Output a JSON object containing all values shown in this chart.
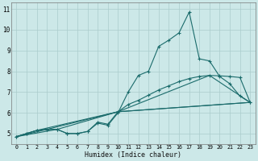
{
  "xlabel": "Humidex (Indice chaleur)",
  "background_color": "#cce8e8",
  "grid_color": "#aacccc",
  "line_color": "#1a6b6b",
  "xlim": [
    -0.5,
    23.5
  ],
  "ylim": [
    4.5,
    11.3
  ],
  "xticks": [
    0,
    1,
    2,
    3,
    4,
    5,
    6,
    7,
    8,
    9,
    10,
    11,
    12,
    13,
    14,
    15,
    16,
    17,
    18,
    19,
    20,
    21,
    22,
    23
  ],
  "yticks": [
    5,
    6,
    7,
    8,
    9,
    10,
    11
  ],
  "series1": [
    [
      0,
      4.85
    ],
    [
      1,
      5.0
    ],
    [
      2,
      5.15
    ],
    [
      3,
      5.2
    ],
    [
      4,
      5.2
    ],
    [
      5,
      5.0
    ],
    [
      6,
      5.0
    ],
    [
      7,
      5.1
    ],
    [
      8,
      5.5
    ],
    [
      9,
      5.4
    ],
    [
      10,
      6.0
    ],
    [
      11,
      7.0
    ],
    [
      12,
      7.8
    ],
    [
      13,
      8.0
    ],
    [
      14,
      9.2
    ],
    [
      15,
      9.5
    ],
    [
      16,
      9.85
    ],
    [
      17,
      10.85
    ],
    [
      18,
      8.6
    ],
    [
      19,
      8.5
    ],
    [
      20,
      7.75
    ],
    [
      21,
      7.4
    ],
    [
      22,
      6.8
    ],
    [
      23,
      6.5
    ]
  ],
  "series2": [
    [
      0,
      4.85
    ],
    [
      1,
      5.0
    ],
    [
      2,
      5.15
    ],
    [
      3,
      5.2
    ],
    [
      4,
      5.2
    ],
    [
      5,
      5.0
    ],
    [
      6,
      5.0
    ],
    [
      7,
      5.1
    ],
    [
      8,
      5.55
    ],
    [
      9,
      5.45
    ],
    [
      10,
      6.05
    ],
    [
      11,
      6.4
    ],
    [
      12,
      6.6
    ],
    [
      13,
      6.85
    ],
    [
      14,
      7.1
    ],
    [
      15,
      7.3
    ],
    [
      16,
      7.5
    ],
    [
      17,
      7.65
    ],
    [
      18,
      7.75
    ],
    [
      19,
      7.8
    ],
    [
      20,
      7.78
    ],
    [
      21,
      7.75
    ],
    [
      22,
      7.7
    ],
    [
      23,
      6.5
    ]
  ],
  "series3": [
    [
      0,
      4.85
    ],
    [
      4,
      5.2
    ],
    [
      10,
      6.05
    ],
    [
      19,
      7.8
    ],
    [
      23,
      6.5
    ]
  ],
  "series4": [
    [
      0,
      4.85
    ],
    [
      3,
      5.2
    ],
    [
      10,
      6.05
    ],
    [
      23,
      6.5
    ]
  ],
  "series5": [
    [
      0,
      4.85
    ],
    [
      2,
      5.15
    ],
    [
      10,
      6.05
    ],
    [
      23,
      6.5
    ]
  ]
}
